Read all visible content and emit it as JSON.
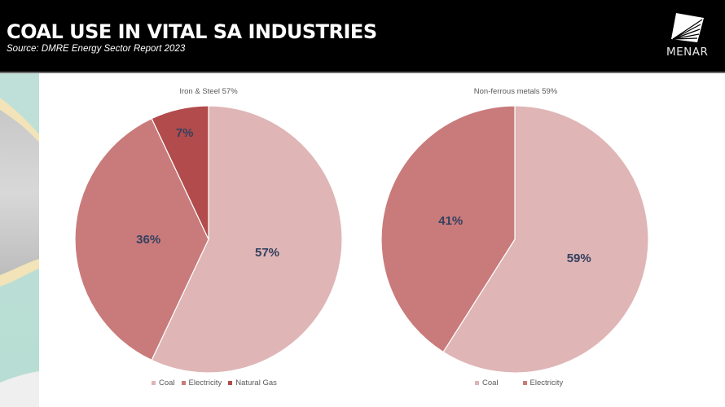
{
  "header": {
    "title": "COAL USE IN VITAL SA INDUSTRIES",
    "subtitle": "Source: DMRE Energy Sector Report 2023",
    "logo_text": "MENAR"
  },
  "colors": {
    "coal": "#dfb5b6",
    "electricity": "#c97b7b",
    "natural_gas": "#b24b4b",
    "label": "#34405e",
    "header_bg": "#000000"
  },
  "chart_data": [
    {
      "type": "pie",
      "title": "Iron & Steel 57%",
      "categories": [
        "Coal",
        "Electricity",
        "Natural Gas"
      ],
      "values": [
        57,
        36,
        7
      ],
      "labels": [
        "57%",
        "36%",
        "7%"
      ],
      "legend": {
        "position": "bottom",
        "entries": [
          "Coal",
          "Electricity",
          "Natural Gas"
        ]
      }
    },
    {
      "type": "pie",
      "title": "Non-ferrous metals 59%",
      "categories": [
        "Coal",
        "Electricity"
      ],
      "values": [
        59,
        41
      ],
      "labels": [
        "59%",
        "41%"
      ],
      "legend": {
        "position": "bottom",
        "entries": [
          "Coal",
          "Electricity"
        ]
      }
    }
  ]
}
